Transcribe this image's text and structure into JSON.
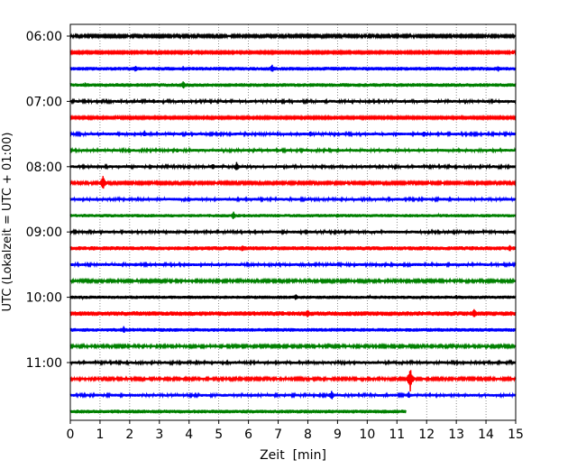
{
  "chart_data": {
    "type": "line",
    "subtype": "helicorder",
    "xlabel": "Zeit  [min]",
    "ylabel": "UTC (Lokalzeit = UTC + 01:00)",
    "xlim": [
      0,
      15
    ],
    "x_ticks": [
      "0",
      "1",
      "2",
      "3",
      "4",
      "5",
      "6",
      "7",
      "8",
      "9",
      "10",
      "11",
      "12",
      "13",
      "14",
      "15"
    ],
    "y_tick_labels": [
      "06:00",
      "07:00",
      "08:00",
      "09:00",
      "10:00",
      "11:00"
    ],
    "grid": "vertical dotted at each minute",
    "trace_colors_cycle": [
      "#000000",
      "#ff0000",
      "#0000ff",
      "#008000"
    ],
    "traces": [
      {
        "start": "06:00",
        "color": "#000000",
        "amp": 1.2,
        "events": []
      },
      {
        "start": "06:15",
        "color": "#ff0000",
        "amp": 1.1,
        "events": [
          {
            "min": 14.9,
            "amp": 3
          }
        ]
      },
      {
        "start": "06:30",
        "color": "#0000ff",
        "amp": 2.0,
        "events": [
          {
            "min": 2.2,
            "amp": 4
          },
          {
            "min": 3.8,
            "amp": 3
          },
          {
            "min": 6.8,
            "amp": 5
          },
          {
            "min": 14.4,
            "amp": 4
          }
        ]
      },
      {
        "start": "06:45",
        "color": "#008000",
        "amp": 2.0,
        "events": [
          {
            "min": 3.8,
            "amp": 5
          },
          {
            "min": 0.5,
            "amp": 3
          }
        ]
      },
      {
        "start": "07:00",
        "color": "#000000",
        "amp": 1.5,
        "events": [
          {
            "min": 2.8,
            "amp": 3
          }
        ]
      },
      {
        "start": "07:15",
        "color": "#ff0000",
        "amp": 1.1,
        "events": [
          {
            "min": 1.6,
            "amp": 3
          }
        ]
      },
      {
        "start": "07:30",
        "color": "#0000ff",
        "amp": 1.5,
        "events": [
          {
            "min": 2.5,
            "amp": 4
          },
          {
            "min": 8.1,
            "amp": 4
          },
          {
            "min": 11.9,
            "amp": 4
          }
        ]
      },
      {
        "start": "07:45",
        "color": "#008000",
        "amp": 1.5,
        "events": [
          {
            "min": 3.6,
            "amp": 3
          },
          {
            "min": 10.7,
            "amp": 3
          }
        ]
      },
      {
        "start": "08:00",
        "color": "#000000",
        "amp": 1.5,
        "events": [
          {
            "min": 4.8,
            "amp": 4
          },
          {
            "min": 5.6,
            "amp": 6
          }
        ]
      },
      {
        "start": "08:15",
        "color": "#ff0000",
        "amp": 1.2,
        "events": [
          {
            "min": 1.1,
            "amp": 10
          }
        ]
      },
      {
        "start": "08:30",
        "color": "#0000ff",
        "amp": 1.5,
        "events": []
      },
      {
        "start": "08:45",
        "color": "#008000",
        "amp": 1.8,
        "events": [
          {
            "min": 5.5,
            "amp": 5
          },
          {
            "min": 9.0,
            "amp": 3
          }
        ]
      },
      {
        "start": "09:00",
        "color": "#000000",
        "amp": 1.5,
        "events": []
      },
      {
        "start": "09:15",
        "color": "#ff0000",
        "amp": 2.2,
        "events": [
          {
            "min": 5.8,
            "amp": 4
          },
          {
            "min": 14.8,
            "amp": 4
          }
        ]
      },
      {
        "start": "09:30",
        "color": "#0000ff",
        "amp": 1.5,
        "events": [
          {
            "min": 2.2,
            "amp": 3
          }
        ]
      },
      {
        "start": "09:45",
        "color": "#008000",
        "amp": 1.3,
        "events": []
      },
      {
        "start": "10:00",
        "color": "#000000",
        "amp": 1.8,
        "events": [
          {
            "min": 7.6,
            "amp": 4
          },
          {
            "min": 13.0,
            "amp": 3
          }
        ]
      },
      {
        "start": "10:15",
        "color": "#ff0000",
        "amp": 2.5,
        "events": [
          {
            "min": 8.0,
            "amp": 5
          },
          {
            "min": 13.6,
            "amp": 6
          }
        ]
      },
      {
        "start": "10:30",
        "color": "#0000ff",
        "amp": 2.0,
        "events": [
          {
            "min": 1.8,
            "amp": 5
          }
        ]
      },
      {
        "start": "10:45",
        "color": "#008000",
        "amp": 1.3,
        "events": []
      },
      {
        "start": "11:00",
        "color": "#000000",
        "amp": 1.5,
        "events": []
      },
      {
        "start": "11:15",
        "color": "#ff0000",
        "amp": 1.3,
        "events": [
          {
            "min": 11.45,
            "amp": 14
          }
        ]
      },
      {
        "start": "11:30",
        "color": "#0000ff",
        "amp": 1.5,
        "events": [
          {
            "min": 8.8,
            "amp": 6
          },
          {
            "min": 11.4,
            "amp": 4
          }
        ]
      },
      {
        "start": "11:45",
        "color": "#008000",
        "amp": 2.0,
        "end_min": 11.3,
        "events": []
      }
    ]
  }
}
